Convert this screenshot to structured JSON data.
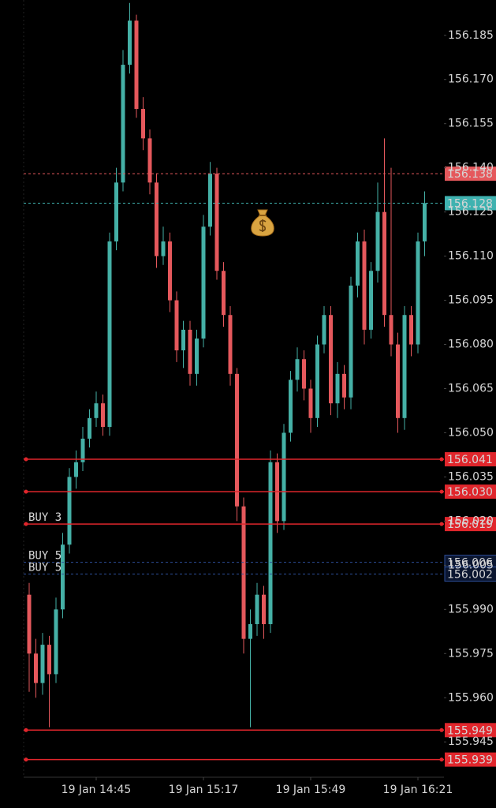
{
  "chart_data": {
    "type": "candlestick",
    "up_color": "#45b0a6",
    "down_color": "#e5585c",
    "categories": [
      null,
      null,
      null,
      null,
      null,
      null,
      null,
      null,
      null,
      null,
      "19 Jan 14:45",
      null,
      null,
      null,
      null,
      null,
      null,
      null,
      null,
      null,
      null,
      null,
      null,
      null,
      null,
      null,
      "19 Jan 15:17",
      null,
      null,
      null,
      null,
      null,
      null,
      null,
      null,
      null,
      null,
      null,
      null,
      null,
      null,
      null,
      "19 Jan 15:49",
      null,
      null,
      null,
      null,
      null,
      null,
      null,
      null,
      null,
      null,
      null,
      null,
      null,
      null,
      null,
      "19 Jan 16:21",
      null
    ],
    "open": [
      155.995,
      155.975,
      155.965,
      155.978,
      155.968,
      155.99,
      156.012,
      156.035,
      156.04,
      156.048,
      156.055,
      156.06,
      156.052,
      156.115,
      156.135,
      156.175,
      156.19,
      156.16,
      156.15,
      156.135,
      156.11,
      156.115,
      156.095,
      156.078,
      156.085,
      156.07,
      156.082,
      156.12,
      156.138,
      156.105,
      156.09,
      156.07,
      156.025,
      155.98,
      155.985,
      155.995,
      155.985,
      156.04,
      156.02,
      156.05,
      156.068,
      156.075,
      156.065,
      156.055,
      156.08,
      156.09,
      156.06,
      156.07,
      156.062,
      156.1,
      156.115,
      156.085,
      156.105,
      156.125,
      156.09,
      156.08,
      156.055,
      156.09,
      156.08,
      156.115
    ],
    "high": [
      155.999,
      155.98,
      155.982,
      155.981,
      155.994,
      156.016,
      156.038,
      156.044,
      156.052,
      156.058,
      156.064,
      156.063,
      156.118,
      156.14,
      156.18,
      156.196,
      156.192,
      156.164,
      156.153,
      156.138,
      156.12,
      156.118,
      156.098,
      156.088,
      156.088,
      156.085,
      156.124,
      156.142,
      156.14,
      156.108,
      156.093,
      156.072,
      156.028,
      155.99,
      155.999,
      155.998,
      156.044,
      156.043,
      156.053,
      156.071,
      156.079,
      156.078,
      156.068,
      156.083,
      156.093,
      156.093,
      156.074,
      156.073,
      156.103,
      156.118,
      156.119,
      156.108,
      156.135,
      156.15,
      156.14,
      156.084,
      156.093,
      156.093,
      156.118,
      156.132
    ],
    "low": [
      155.962,
      155.96,
      155.961,
      155.95,
      155.965,
      155.987,
      156.009,
      156.031,
      156.037,
      156.045,
      156.052,
      156.049,
      156.049,
      156.112,
      156.132,
      156.172,
      156.157,
      156.146,
      156.131,
      156.106,
      156.107,
      156.091,
      156.074,
      156.072,
      156.066,
      156.066,
      156.079,
      156.117,
      156.102,
      156.086,
      156.066,
      156.02,
      155.975,
      155.95,
      155.981,
      155.98,
      155.982,
      156.016,
      156.017,
      156.047,
      156.064,
      156.061,
      156.05,
      156.052,
      156.077,
      156.056,
      156.055,
      156.058,
      156.058,
      156.096,
      156.08,
      156.082,
      156.101,
      156.086,
      156.076,
      156.05,
      156.051,
      156.076,
      156.077,
      156.11
    ],
    "close": [
      155.975,
      155.965,
      155.978,
      155.968,
      155.99,
      156.012,
      156.035,
      156.04,
      156.048,
      156.055,
      156.06,
      156.052,
      156.115,
      156.135,
      156.175,
      156.19,
      156.16,
      156.15,
      156.135,
      156.11,
      156.115,
      156.095,
      156.078,
      156.085,
      156.07,
      156.082,
      156.12,
      156.138,
      156.105,
      156.09,
      156.07,
      156.025,
      155.98,
      155.985,
      155.995,
      155.985,
      156.04,
      156.02,
      156.05,
      156.068,
      156.075,
      156.065,
      156.055,
      156.08,
      156.09,
      156.06,
      156.07,
      156.062,
      156.1,
      156.115,
      156.085,
      156.105,
      156.125,
      156.09,
      156.08,
      156.055,
      156.09,
      156.08,
      156.115,
      156.128
    ],
    "ylim": [
      155.933,
      156.197
    ],
    "yticks": [
      156.185,
      {
        "value": 156.17,
        "label": "156.170"
      },
      156.155,
      {
        "value": 156.14,
        "label": "156.140"
      },
      156.125,
      {
        "value": 156.11,
        "label": "156.110"
      },
      156.095,
      {
        "value": 156.08,
        "label": "156.080"
      },
      156.065,
      {
        "value": 156.05,
        "label": "156.050"
      },
      156.035,
      {
        "value": 156.02,
        "label": "156.020"
      },
      {
        "value": 156.005,
        "label": "156.005"
      },
      {
        "value": 155.99,
        "label": "155.990"
      },
      155.975,
      {
        "value": 155.96,
        "label": "155.960"
      },
      155.945
    ],
    "levels": [
      {
        "value": 156.138,
        "label": "156.138",
        "color": "#e5585c",
        "style": "dashed"
      },
      {
        "value": 156.128,
        "label": "156.128",
        "color": "#3fb2b0",
        "style": "dashed"
      },
      {
        "value": 156.041,
        "label": "156.041",
        "color": "#e0262c",
        "style": "solid"
      },
      {
        "value": 156.03,
        "label": "156.030",
        "color": "#e0262c",
        "style": "solid"
      },
      {
        "value": 156.019,
        "label": "156.019",
        "color": "#e0262c",
        "style": "solid",
        "tag": "BUY 3"
      },
      {
        "value": 156.006,
        "label": "156.006",
        "color": "#2d4f9a",
        "style": "dashed",
        "tag": "BUY 5"
      },
      {
        "value": 156.002,
        "label": "156.002",
        "color": "#2d4f9a",
        "style": "dashed",
        "tag": "BUY 5"
      },
      {
        "value": 155.949,
        "label": "155.949",
        "color": "#e0262c",
        "style": "solid"
      },
      {
        "value": 155.939,
        "label": "155.939",
        "color": "#e0262c",
        "style": "solid"
      }
    ]
  }
}
